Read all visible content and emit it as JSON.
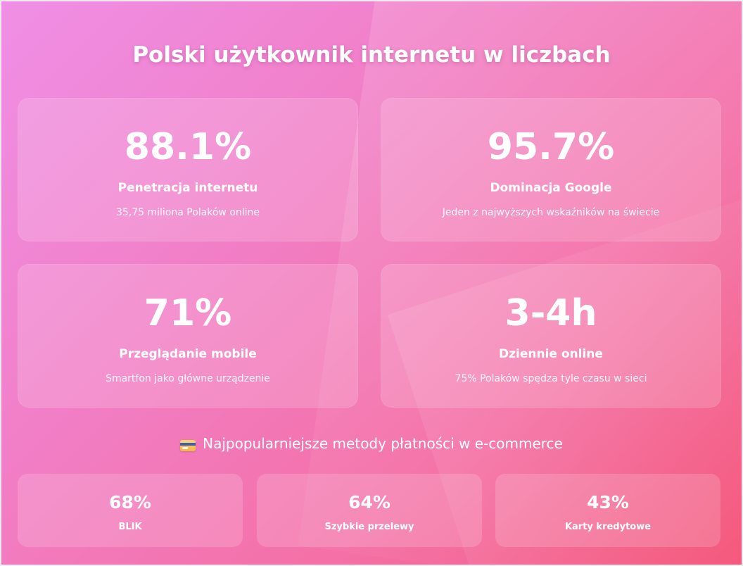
{
  "title": "Polski użytkownik internetu w liczbach",
  "stats": [
    {
      "value": "88.1%",
      "label": "Penetracja internetu",
      "description": "35,75 miliona Polaków online"
    },
    {
      "value": "95.7%",
      "label": "Dominacja Google",
      "description": "Jeden z najwyższych wskaźników na świecie"
    },
    {
      "value": "71%",
      "label": "Przeglądanie mobile",
      "description": "Smartfon jako główne urządzenie"
    },
    {
      "value": "3-4h",
      "label": "Dziennie online",
      "description": "75% Polaków spędza tyle czasu w sieci"
    }
  ],
  "payments": {
    "icon": "credit-card-icon",
    "title": "Najpopularniejsze metody płatności w e-commerce",
    "items": [
      {
        "value": "68%",
        "label": "BLIK"
      },
      {
        "value": "64%",
        "label": "Szybkie przelewy"
      },
      {
        "value": "43%",
        "label": "Karty kredytowe"
      }
    ]
  }
}
